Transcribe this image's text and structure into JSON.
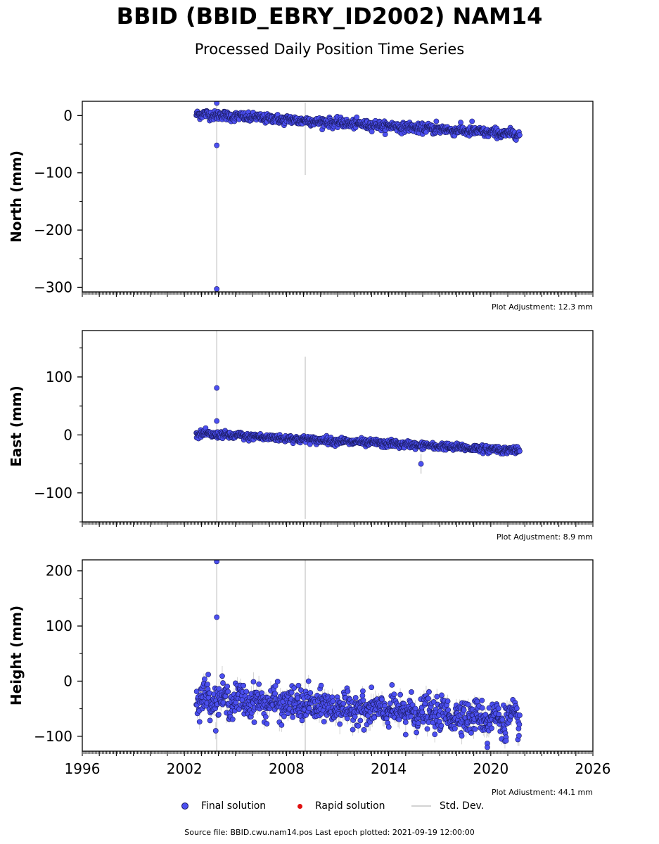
{
  "title": "BBID (BBID_EBRY_ID2002) NAM14",
  "subtitle": "Processed Daily Position Time Series",
  "colors": {
    "final": "#4b4ff0",
    "final_edge": "#1a1a60",
    "rapid": "#e01010",
    "std": "#d3d3d3"
  },
  "legend": {
    "final": "Final solution",
    "rapid": "Rapid solution",
    "std": "Std. Dev."
  },
  "footer": "Source file: BBID.cwu.nam14.pos  Last epoch plotted: 2021-09-19 12:00:00",
  "chart_data": [
    {
      "type": "scatter",
      "ylabel": "North (mm)",
      "adjustment": "Plot Adjustment: 12.3 mm",
      "xlim": [
        1996,
        2026
      ],
      "ylim": [
        -308,
        25
      ],
      "yticks": [
        0,
        -100,
        -200,
        -300
      ],
      "xticks": [
        1996,
        2002,
        2008,
        2014,
        2020,
        2026
      ],
      "x_start": 2002.7,
      "x_end": 2021.72,
      "trend_start": 3,
      "trend_end": -33,
      "noise": 4,
      "outliers": [
        {
          "x": 2003.9,
          "y": 22
        },
        {
          "x": 2003.9,
          "y": -52
        },
        {
          "x": 2003.9,
          "y": -303
        },
        {
          "x": 2016.8,
          "y": -10
        },
        {
          "x": 2018.9,
          "y": -10
        }
      ],
      "error_bars": [
        {
          "x": 2003.9,
          "low": -308,
          "high": 25
        },
        {
          "x": 2009.1,
          "low": -104,
          "high": 23
        }
      ]
    },
    {
      "type": "scatter",
      "ylabel": "East (mm)",
      "adjustment": "Plot Adjustment: 8.9 mm",
      "xlim": [
        1996,
        2026
      ],
      "ylim": [
        -150,
        180
      ],
      "yticks": [
        100,
        0,
        -100
      ],
      "xticks": [
        1996,
        2002,
        2008,
        2014,
        2020,
        2026
      ],
      "x_start": 2002.7,
      "x_end": 2021.72,
      "trend_start": 2,
      "trend_end": -27,
      "noise": 3,
      "outliers": [
        {
          "x": 2003.9,
          "y": 81
        },
        {
          "x": 2003.9,
          "y": 24
        },
        {
          "x": 2015.9,
          "y": -50
        }
      ],
      "error_bars": [
        {
          "x": 2003.9,
          "low": -150,
          "high": 180
        },
        {
          "x": 2009.1,
          "low": -145,
          "high": 135
        },
        {
          "x": 2015.9,
          "low": -67,
          "high": -33
        }
      ]
    },
    {
      "type": "scatter",
      "ylabel": "Height (mm)",
      "adjustment": "Plot Adjustment: 44.1 mm",
      "xlim": [
        1996,
        2026
      ],
      "ylim": [
        -127,
        220
      ],
      "yticks": [
        200,
        100,
        0,
        -100
      ],
      "xticks": [
        1996,
        2002,
        2008,
        2014,
        2020,
        2026
      ],
      "x_start": 2002.7,
      "x_end": 2021.72,
      "trend_start": -30,
      "trend_end": -70,
      "noise": 14,
      "outliers": [
        {
          "x": 2003.9,
          "y": 217
        },
        {
          "x": 2003.9,
          "y": 116
        },
        {
          "x": 2003.4,
          "y": 12
        },
        {
          "x": 2008.7,
          "y": -8
        },
        {
          "x": 2019.8,
          "y": -113
        },
        {
          "x": 2019.8,
          "y": -120
        },
        {
          "x": 2020.9,
          "y": -108
        },
        {
          "x": 2015.0,
          "y": -97
        }
      ],
      "error_bars": [
        {
          "x": 2003.9,
          "low": -127,
          "high": 220
        },
        {
          "x": 2009.1,
          "low": -127,
          "high": 220
        }
      ]
    }
  ]
}
